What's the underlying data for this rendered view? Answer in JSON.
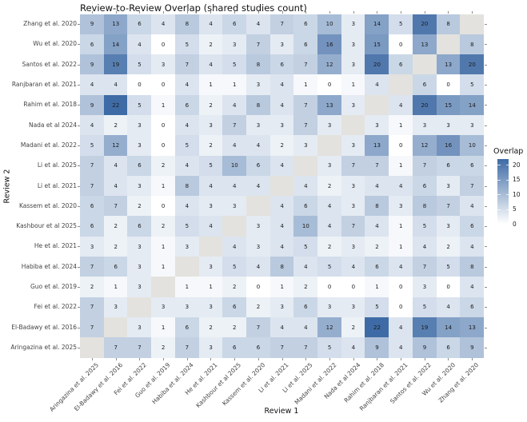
{
  "chart_data": {
    "type": "heatmap",
    "title": "Review-to-Review Overlap (shared studies count)",
    "xlabel": "Review 1",
    "ylabel": "Review 2",
    "x_categories": [
      "Aringazina et al. 2025",
      "El-Badawy et al. 2016",
      "Fei et al. 2022",
      "Guo et al. 2019",
      "Habiba et al. 2024",
      "He et al. 2021",
      "Kashbour et al 2025",
      "Kassem et al. 2020",
      "Li et al. 2021",
      "Li et al. 2025",
      "Madani et al. 2022",
      "Nada et al 2024",
      "Rahim et al. 2018",
      "Ranjbaran et al. 2021",
      "Santos et al. 2022",
      "Wu et al. 2020",
      "Zhang et al. 2020"
    ],
    "y_categories": [
      "Zhang et al. 2020",
      "Wu et al. 2020",
      "Santos et al. 2022",
      "Ranjbaran et al. 2021",
      "Rahim et al. 2018",
      "Nada et al 2024",
      "Madani et al. 2022",
      "Li et al. 2025",
      "Li et al. 2021",
      "Kassem et al. 2020",
      "Kashbour et al 2025",
      "He et al. 2021",
      "Habiba et al. 2024",
      "Guo et al. 2019",
      "Fei et al. 2022",
      "El-Badawy et al. 2016",
      "Aringazina et al. 2025"
    ],
    "matrix": [
      [
        9,
        13,
        6,
        4,
        8,
        4,
        6,
        4,
        7,
        6,
        10,
        3,
        14,
        5,
        20,
        8,
        null
      ],
      [
        6,
        14,
        4,
        0,
        5,
        2,
        3,
        7,
        3,
        6,
        16,
        3,
        15,
        0,
        13,
        null,
        8
      ],
      [
        9,
        19,
        5,
        3,
        7,
        4,
        5,
        8,
        6,
        7,
        12,
        3,
        20,
        6,
        null,
        13,
        20
      ],
      [
        4,
        4,
        0,
        0,
        4,
        1,
        1,
        3,
        4,
        1,
        0,
        1,
        4,
        null,
        6,
        0,
        5
      ],
      [
        9,
        22,
        5,
        1,
        6,
        2,
        4,
        8,
        4,
        7,
        13,
        3,
        null,
        4,
        20,
        15,
        14
      ],
      [
        4,
        2,
        3,
        0,
        4,
        3,
        7,
        3,
        3,
        7,
        3,
        null,
        3,
        1,
        3,
        3,
        3
      ],
      [
        5,
        12,
        3,
        0,
        5,
        2,
        4,
        4,
        2,
        3,
        null,
        3,
        13,
        0,
        12,
        16,
        10
      ],
      [
        7,
        4,
        6,
        2,
        4,
        5,
        10,
        6,
        4,
        null,
        3,
        7,
        7,
        1,
        7,
        6,
        6
      ],
      [
        7,
        4,
        3,
        1,
        8,
        4,
        4,
        4,
        null,
        4,
        2,
        3,
        4,
        4,
        6,
        3,
        7
      ],
      [
        6,
        7,
        2,
        0,
        4,
        3,
        3,
        null,
        4,
        6,
        4,
        3,
        8,
        3,
        8,
        7,
        4
      ],
      [
        6,
        2,
        6,
        2,
        5,
        4,
        null,
        3,
        4,
        10,
        4,
        7,
        4,
        1,
        5,
        3,
        6
      ],
      [
        3,
        2,
        3,
        1,
        3,
        null,
        4,
        3,
        4,
        5,
        2,
        3,
        2,
        1,
        4,
        2,
        4
      ],
      [
        7,
        6,
        3,
        1,
        null,
        3,
        5,
        4,
        8,
        4,
        5,
        4,
        6,
        4,
        7,
        5,
        8
      ],
      [
        2,
        1,
        3,
        null,
        1,
        1,
        2,
        0,
        1,
        2,
        0,
        0,
        1,
        0,
        3,
        0,
        4
      ],
      [
        7,
        3,
        null,
        3,
        3,
        3,
        6,
        2,
        3,
        6,
        3,
        3,
        5,
        0,
        5,
        4,
        6
      ],
      [
        7,
        null,
        3,
        1,
        6,
        2,
        2,
        7,
        4,
        4,
        12,
        2,
        22,
        4,
        19,
        14,
        13
      ],
      [
        null,
        7,
        7,
        2,
        7,
        3,
        6,
        6,
        7,
        7,
        5,
        4,
        9,
        4,
        9,
        6,
        9
      ]
    ],
    "value_range": [
      0,
      22
    ],
    "legend": {
      "title": "Overlap",
      "tick_values": [
        20,
        15,
        10,
        5,
        0
      ]
    },
    "colors": {
      "low": "#FFFFFF",
      "high": "#3E6BA5",
      "na": "#E3E2DE",
      "tick": "#8C8C8C",
      "label": "#444444",
      "cell_text": "#1C1C1C"
    },
    "layout_hints": {
      "grid": false,
      "legend_position": "right",
      "x_label_angle": 45
    }
  }
}
